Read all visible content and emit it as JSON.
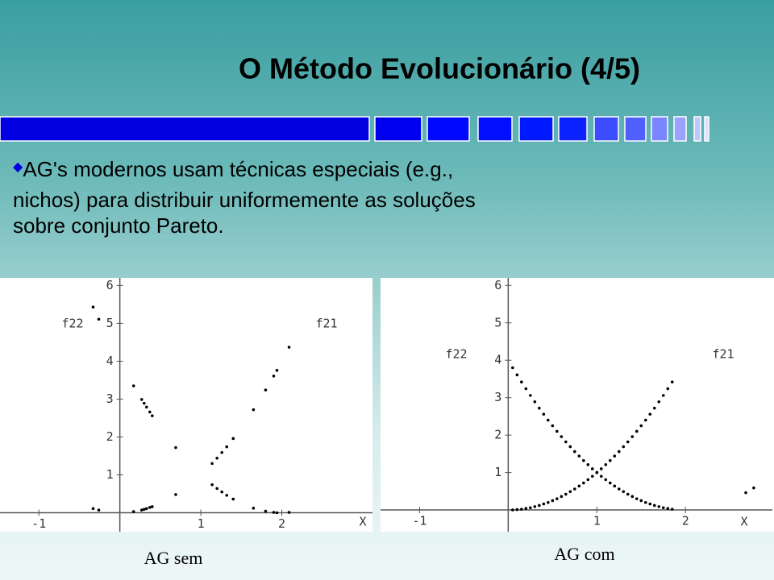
{
  "slide_title": "O Método Evolucionário (4/5)",
  "bullet": [
    "AG's modernos usam técnicas especiais (e.g.,",
    "nichos) para distribuir uniformemente as soluções",
    "sobre conjunto Pareto."
  ],
  "captions": [
    "AG sem",
    "AG com"
  ],
  "chart_data": [
    {
      "type": "scatter",
      "x_label": "X",
      "xlim": [
        -1.48,
        3.12
      ],
      "ylim": [
        -0.5,
        6.2
      ],
      "xticks": [
        -1,
        1,
        2
      ],
      "yticks": [
        1,
        2,
        3,
        4,
        5,
        6
      ],
      "series": [
        {
          "name": "f22",
          "color": "#000",
          "x": [
            -0.33,
            -0.26,
            0.17,
            0.27,
            0.3,
            0.33,
            0.37,
            0.4,
            0.69,
            1.14,
            1.2,
            1.26,
            1.32,
            1.4,
            1.65,
            1.8,
            1.9,
            1.94,
            2.09
          ],
          "values": [
            5.43,
            5.11,
            3.35,
            2.99,
            2.89,
            2.79,
            2.66,
            2.56,
            1.72,
            0.74,
            0.64,
            0.55,
            0.46,
            0.36,
            0.12,
            0.04,
            0.01,
            0.0,
            0.01
          ]
        },
        {
          "name": "f21",
          "color": "#000",
          "x": [
            -0.33,
            -0.26,
            0.17,
            0.27,
            0.3,
            0.33,
            0.37,
            0.4,
            0.69,
            1.14,
            1.2,
            1.26,
            1.32,
            1.4,
            1.65,
            1.8,
            1.9,
            1.94,
            2.09
          ],
          "values": [
            0.11,
            0.07,
            0.03,
            0.07,
            0.09,
            0.11,
            0.14,
            0.16,
            0.48,
            1.3,
            1.44,
            1.59,
            1.74,
            1.96,
            2.72,
            3.24,
            3.61,
            3.76,
            4.37
          ]
        }
      ]
    },
    {
      "type": "scatter",
      "x_label": "X",
      "xlim": [
        -1.44,
        2.98
      ],
      "ylim": [
        -0.58,
        6.2
      ],
      "xticks": [
        -1,
        1,
        2
      ],
      "yticks": [
        1,
        2,
        3,
        4,
        5,
        6
      ],
      "series": [
        {
          "name": "f22",
          "color": "#000",
          "x": [
            0.05,
            0.1,
            0.15,
            0.2,
            0.25,
            0.3,
            0.35,
            0.4,
            0.45,
            0.5,
            0.55,
            0.6,
            0.65,
            0.7,
            0.75,
            0.8,
            0.85,
            0.9,
            0.95,
            1.0,
            1.05,
            1.1,
            1.15,
            1.2,
            1.25,
            1.3,
            1.35,
            1.4,
            1.45,
            1.5,
            1.55,
            1.6,
            1.65,
            1.7,
            1.75,
            1.8,
            1.85,
            2.68,
            2.77
          ],
          "values": [
            3.8,
            3.61,
            3.42,
            3.24,
            3.06,
            2.89,
            2.72,
            2.56,
            2.4,
            2.25,
            2.1,
            1.96,
            1.82,
            1.69,
            1.56,
            1.44,
            1.32,
            1.21,
            1.1,
            1,
            0.9,
            0.81,
            0.72,
            0.64,
            0.56,
            0.49,
            0.42,
            0.36,
            0.3,
            0.25,
            0.2,
            0.16,
            0.12,
            0.09,
            0.06,
            0.04,
            0.02,
            0.46,
            0.59
          ]
        },
        {
          "name": "f21",
          "color": "#000",
          "x": [
            0.05,
            0.1,
            0.15,
            0.2,
            0.25,
            0.3,
            0.35,
            0.4,
            0.45,
            0.5,
            0.55,
            0.6,
            0.65,
            0.7,
            0.75,
            0.8,
            0.85,
            0.9,
            0.95,
            1.0,
            1.05,
            1.1,
            1.15,
            1.2,
            1.25,
            1.3,
            1.35,
            1.4,
            1.45,
            1.5,
            1.55,
            1.6,
            1.65,
            1.7,
            1.75,
            1.8,
            1.85
          ],
          "values": [
            0.0,
            0.01,
            0.02,
            0.04,
            0.06,
            0.09,
            0.12,
            0.16,
            0.2,
            0.25,
            0.3,
            0.36,
            0.42,
            0.49,
            0.56,
            0.64,
            0.72,
            0.81,
            0.9,
            1,
            1.1,
            1.21,
            1.32,
            1.44,
            1.56,
            1.69,
            1.82,
            1.96,
            2.1,
            2.25,
            2.4,
            2.56,
            2.72,
            2.89,
            3.06,
            3.24,
            3.42
          ]
        }
      ]
    }
  ]
}
